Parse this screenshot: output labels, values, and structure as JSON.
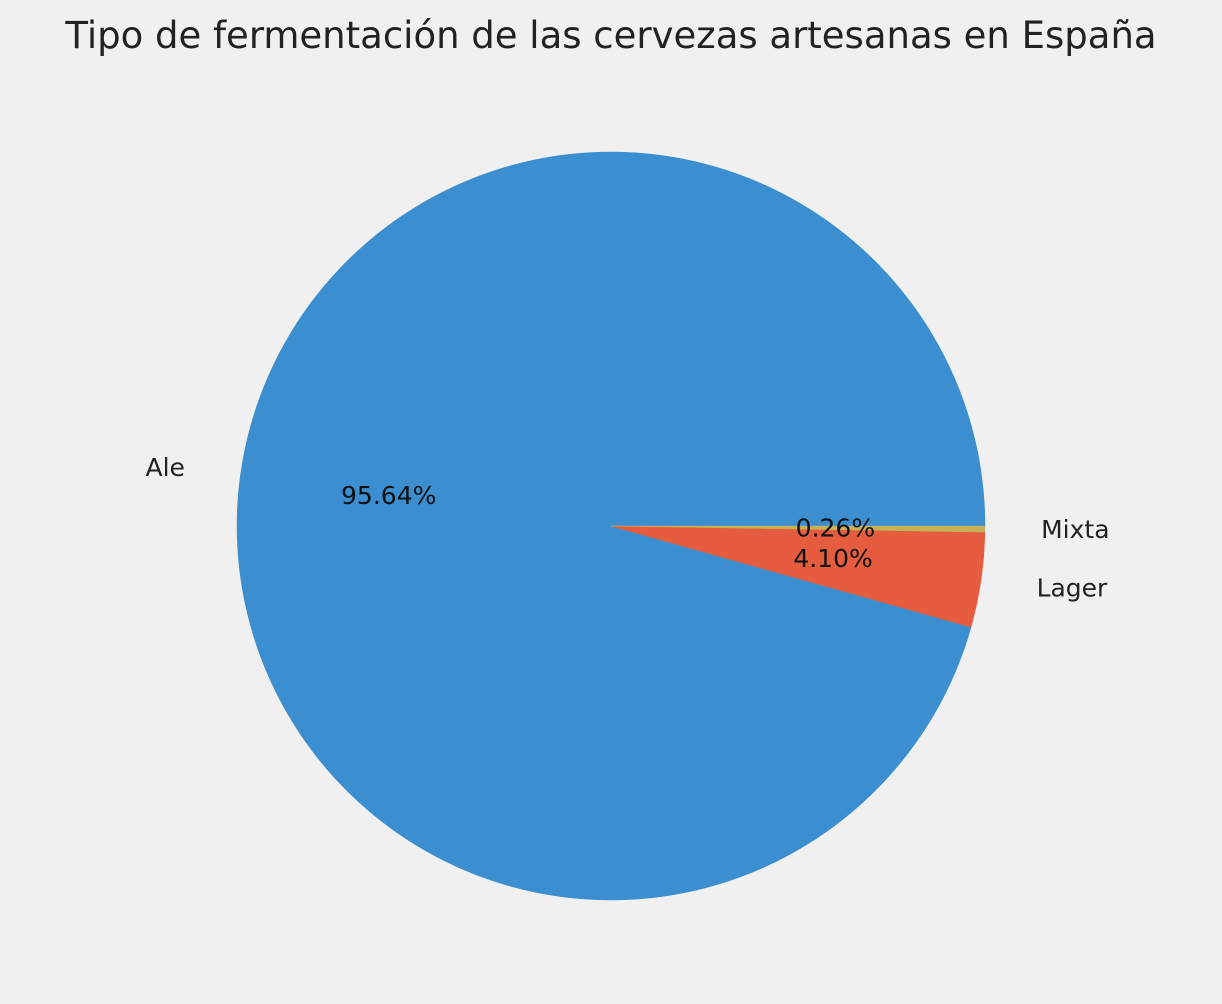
{
  "chart_data": {
    "type": "pie",
    "title": "Tipo de fermentación de las cervezas artesanas en España",
    "slices": [
      {
        "label": "Ale",
        "value": 95.64,
        "pct_label": "95.64%",
        "color": "#3b8ed0"
      },
      {
        "label": "Lager",
        "value": 4.1,
        "pct_label": "4.10%",
        "color": "#e55c3e"
      },
      {
        "label": "Mixta",
        "value": 0.26,
        "pct_label": "0.26%",
        "color": "#c6b15a"
      }
    ],
    "start_angle_deg": 0,
    "direction": "counterclockwise",
    "background": "#f0f0f0"
  }
}
